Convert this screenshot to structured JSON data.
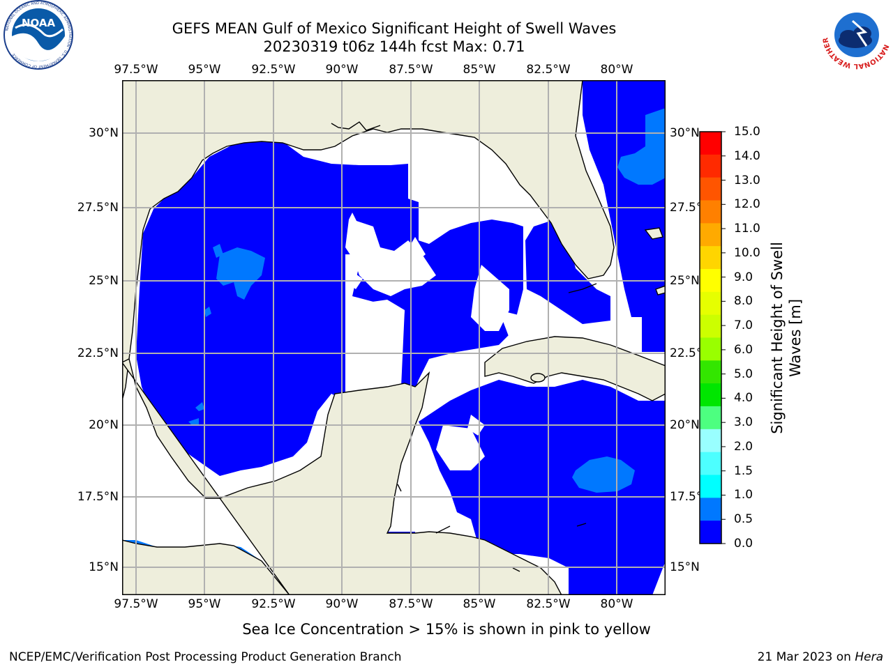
{
  "title": {
    "line1": "GEFS MEAN Gulf of Mexico Significant Height of Swell Waves",
    "line2": "20230319 t06z 144h fcst   Max: 0.71"
  },
  "map": {
    "lon_ticks": [
      "97.5°W",
      "95°W",
      "92.5°W",
      "90°W",
      "87.5°W",
      "85°W",
      "82.5°W",
      "80°W"
    ],
    "lat_ticks": [
      "30°N",
      "27.5°N",
      "25°N",
      "22.5°N",
      "20°N",
      "17.5°N",
      "15°N"
    ],
    "extent": {
      "lon_min": -98.0,
      "lon_max": -78.3,
      "lat_min": 14.0,
      "lat_max": 31.8
    },
    "colors": {
      "land": "#eeeedc",
      "no_data": "#ffffff",
      "wave_0_0_5": "#0000ff",
      "wave_0_5_1_0": "#0078ff",
      "grid": "#b0b0b0",
      "coast": "#000000"
    }
  },
  "colorbar": {
    "title_line1": "Significant Height of Swell",
    "title_line2": "Waves [m]",
    "labels": [
      "15.0",
      "14.0",
      "13.0",
      "12.0",
      "11.0",
      "10.0",
      "9.0",
      "8.0",
      "7.0",
      "6.0",
      "5.0",
      "4.0",
      "3.0",
      "2.0",
      "1.5",
      "1.0",
      "0.5",
      "0.0"
    ],
    "colors": [
      "#ff0000",
      "#ff2a00",
      "#ff5500",
      "#ff8000",
      "#ffaa00",
      "#ffd500",
      "#ffff00",
      "#e6ff00",
      "#ccff00",
      "#99ff00",
      "#33e600",
      "#00e600",
      "#4dff80",
      "#99ffff",
      "#4dffff",
      "#00ffff",
      "#0078ff",
      "#0000ff"
    ]
  },
  "note": "Sea Ice Concentration > 15% is shown in pink to yellow",
  "footer": {
    "left": "NCEP/EMC/Verification Post Processing Product Generation Branch",
    "right_date": "21 Mar 2023 on ",
    "right_host": "Hera"
  },
  "logos": {
    "left_text": "NOAA",
    "left_ring": "NATIONAL OCEANIC AND ATMOSPHERIC ADMINISTRATION · U.S. DEPARTMENT OF COMMERCE",
    "right_ring": "NATIONAL WEATHER SERVICE"
  }
}
